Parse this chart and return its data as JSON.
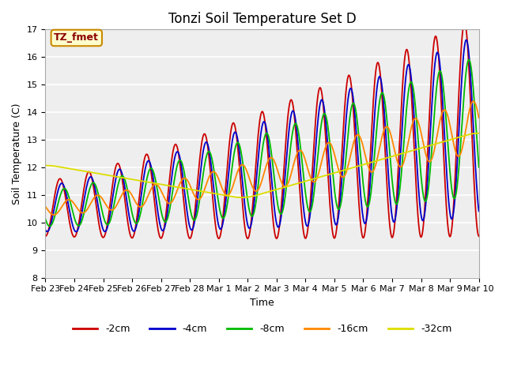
{
  "title": "Tonzi Soil Temperature Set D",
  "xlabel": "Time",
  "ylabel": "Soil Temperature (C)",
  "ylim": [
    8.0,
    17.0
  ],
  "yticks": [
    8.0,
    9.0,
    10.0,
    11.0,
    12.0,
    13.0,
    14.0,
    15.0,
    16.0,
    17.0
  ],
  "series_colors": {
    "-2cm": "#cc0000",
    "-4cm": "#0000cc",
    "-8cm": "#00bb00",
    "-16cm": "#ff8800",
    "-32cm": "#dddd00"
  },
  "annotation_text": "TZ_fmet",
  "annotation_bg": "#ffffcc",
  "annotation_border": "#cc8800",
  "background_color": "#ffffff",
  "plot_bg": "#eeeeee",
  "grid_color": "#ffffff",
  "xtick_labels": [
    "Feb 23",
    "Feb 24",
    "Feb 25",
    "Feb 26",
    "Feb 27",
    "Feb 28",
    "Mar 1",
    "Mar 2",
    "Mar 3",
    "Mar 4",
    "Mar 5",
    "Mar 6",
    "Mar 7",
    "Mar 8",
    "Mar 9",
    "Mar 10"
  ],
  "title_fontsize": 12,
  "label_fontsize": 9,
  "tick_fontsize": 8,
  "legend_fontsize": 9,
  "linewidth": 1.3
}
